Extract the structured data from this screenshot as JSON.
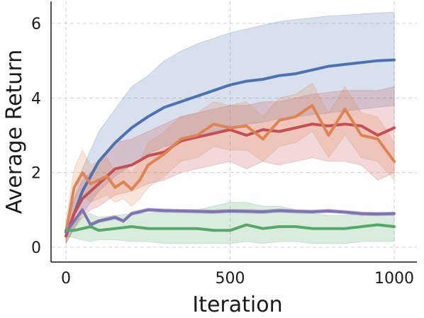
{
  "chart_data": {
    "type": "line",
    "title": "",
    "xlabel": "Iteration",
    "ylabel": "Average Return",
    "xlim": [
      -50,
      1050
    ],
    "ylim": [
      -0.3,
      6.6
    ],
    "xticks": [
      0,
      500,
      1000
    ],
    "yticks": [
      0,
      2,
      4,
      6
    ],
    "grid": true,
    "legend": "none",
    "series": [
      {
        "color": "#4c72b0",
        "x": [
          0,
          25,
          50,
          75,
          100,
          150,
          200,
          250,
          300,
          350,
          400,
          450,
          500,
          550,
          600,
          650,
          700,
          750,
          800,
          850,
          900,
          950,
          1000
        ],
        "mean": [
          0.3,
          0.9,
          1.5,
          1.9,
          2.3,
          2.8,
          3.2,
          3.5,
          3.75,
          3.9,
          4.05,
          4.2,
          4.35,
          4.45,
          4.5,
          4.6,
          4.65,
          4.75,
          4.85,
          4.9,
          4.95,
          5.0,
          5.02
        ],
        "lower": [
          0.1,
          0.5,
          0.9,
          1.2,
          1.5,
          1.9,
          2.2,
          2.5,
          2.7,
          2.8,
          2.95,
          3.1,
          3.2,
          3.3,
          3.35,
          3.45,
          3.5,
          3.55,
          3.6,
          3.65,
          3.7,
          3.75,
          3.8
        ],
        "upper": [
          0.5,
          1.3,
          2.1,
          2.6,
          3.1,
          3.7,
          4.3,
          4.6,
          5.0,
          5.25,
          5.45,
          5.6,
          5.75,
          5.85,
          5.95,
          6.05,
          6.1,
          6.15,
          6.2,
          6.22,
          6.25,
          6.28,
          6.3
        ]
      },
      {
        "color": "#c44e52",
        "x": [
          0,
          25,
          50,
          75,
          100,
          150,
          200,
          250,
          300,
          350,
          400,
          450,
          500,
          550,
          600,
          650,
          700,
          750,
          800,
          850,
          900,
          950,
          1000
        ],
        "mean": [
          0.3,
          0.9,
          1.3,
          1.5,
          1.7,
          2.1,
          2.2,
          2.45,
          2.55,
          2.85,
          2.95,
          3.05,
          3.15,
          3.0,
          3.15,
          3.1,
          3.2,
          3.3,
          3.25,
          3.3,
          3.25,
          3.0,
          3.2
        ],
        "lower": [
          0.1,
          0.5,
          0.8,
          1.0,
          1.1,
          1.4,
          1.5,
          1.7,
          1.8,
          2.0,
          2.1,
          2.2,
          2.3,
          2.1,
          2.3,
          2.2,
          2.3,
          2.4,
          2.3,
          2.3,
          2.2,
          1.8,
          2.0
        ],
        "upper": [
          0.5,
          1.3,
          1.8,
          2.0,
          2.3,
          2.8,
          2.9,
          3.1,
          3.3,
          3.5,
          3.6,
          3.7,
          3.8,
          3.8,
          3.9,
          3.9,
          4.0,
          4.1,
          4.15,
          4.2,
          4.2,
          4.2,
          4.3
        ]
      },
      {
        "color": "#dd8452",
        "x": [
          0,
          25,
          50,
          75,
          100,
          125,
          150,
          175,
          200,
          225,
          250,
          300,
          350,
          400,
          450,
          500,
          550,
          600,
          650,
          700,
          750,
          800,
          850,
          900,
          950,
          1000
        ],
        "mean": [
          0.4,
          1.6,
          2.0,
          1.7,
          1.8,
          1.9,
          1.6,
          1.75,
          1.55,
          1.8,
          2.2,
          2.5,
          2.9,
          3.0,
          3.3,
          3.2,
          3.25,
          2.9,
          3.4,
          3.5,
          3.8,
          3.0,
          3.7,
          3.0,
          2.9,
          2.3
        ],
        "lower": [
          0.1,
          1.1,
          1.4,
          1.2,
          1.3,
          1.4,
          1.2,
          1.3,
          1.1,
          1.3,
          1.6,
          1.9,
          2.3,
          2.4,
          2.7,
          2.6,
          2.6,
          2.3,
          2.7,
          2.8,
          3.1,
          2.4,
          3.0,
          2.4,
          2.3,
          1.8
        ],
        "upper": [
          0.7,
          2.1,
          2.6,
          2.2,
          2.3,
          2.4,
          2.0,
          2.2,
          2.0,
          2.3,
          2.8,
          3.1,
          3.5,
          3.6,
          3.9,
          3.8,
          3.9,
          3.5,
          4.0,
          4.1,
          4.4,
          3.6,
          4.3,
          3.6,
          3.5,
          2.8
        ]
      },
      {
        "color": "#8172b3",
        "x": [
          0,
          25,
          50,
          75,
          100,
          125,
          150,
          175,
          200,
          225,
          250,
          300,
          350,
          400,
          450,
          500,
          550,
          600,
          650,
          700,
          750,
          800,
          850,
          900,
          950,
          1000
        ],
        "mean": [
          0.4,
          0.7,
          1.0,
          0.6,
          0.7,
          0.75,
          0.8,
          0.7,
          0.9,
          0.95,
          1.0,
          0.98,
          0.97,
          0.96,
          0.95,
          0.97,
          0.96,
          0.95,
          0.98,
          0.96,
          0.95,
          0.97,
          0.94,
          0.9,
          0.89,
          0.9
        ],
        "lower": [
          0.35,
          0.65,
          0.95,
          0.55,
          0.65,
          0.7,
          0.75,
          0.65,
          0.85,
          0.9,
          0.95,
          0.93,
          0.92,
          0.91,
          0.9,
          0.92,
          0.91,
          0.9,
          0.93,
          0.91,
          0.9,
          0.92,
          0.89,
          0.85,
          0.84,
          0.85
        ],
        "upper": [
          0.45,
          0.75,
          1.05,
          0.65,
          0.75,
          0.8,
          0.85,
          0.75,
          0.95,
          1.0,
          1.05,
          1.03,
          1.02,
          1.01,
          1.0,
          1.02,
          1.01,
          1.0,
          1.03,
          1.01,
          1.0,
          1.02,
          0.99,
          0.95,
          0.94,
          0.95
        ]
      },
      {
        "color": "#55a868",
        "x": [
          0,
          25,
          50,
          75,
          100,
          150,
          200,
          250,
          300,
          350,
          400,
          450,
          500,
          550,
          600,
          650,
          700,
          750,
          800,
          850,
          900,
          950,
          1000
        ],
        "mean": [
          0.45,
          0.45,
          0.5,
          0.55,
          0.45,
          0.5,
          0.55,
          0.5,
          0.5,
          0.5,
          0.5,
          0.45,
          0.45,
          0.6,
          0.5,
          0.55,
          0.55,
          0.5,
          0.5,
          0.5,
          0.55,
          0.6,
          0.55
        ],
        "lower": [
          0.3,
          0.25,
          0.2,
          0.15,
          0.2,
          0.2,
          0.15,
          0.15,
          0.1,
          0.1,
          0.1,
          0.1,
          0.1,
          0.15,
          0.1,
          0.15,
          0.15,
          0.1,
          0.1,
          0.1,
          0.15,
          0.15,
          0.15
        ],
        "upper": [
          0.6,
          0.7,
          0.8,
          0.9,
          0.8,
          0.85,
          0.9,
          0.9,
          0.95,
          1.0,
          1.0,
          1.1,
          1.2,
          1.2,
          1.1,
          1.1,
          1.0,
          0.9,
          0.85,
          0.85,
          0.9,
          0.9,
          0.85
        ]
      }
    ]
  }
}
